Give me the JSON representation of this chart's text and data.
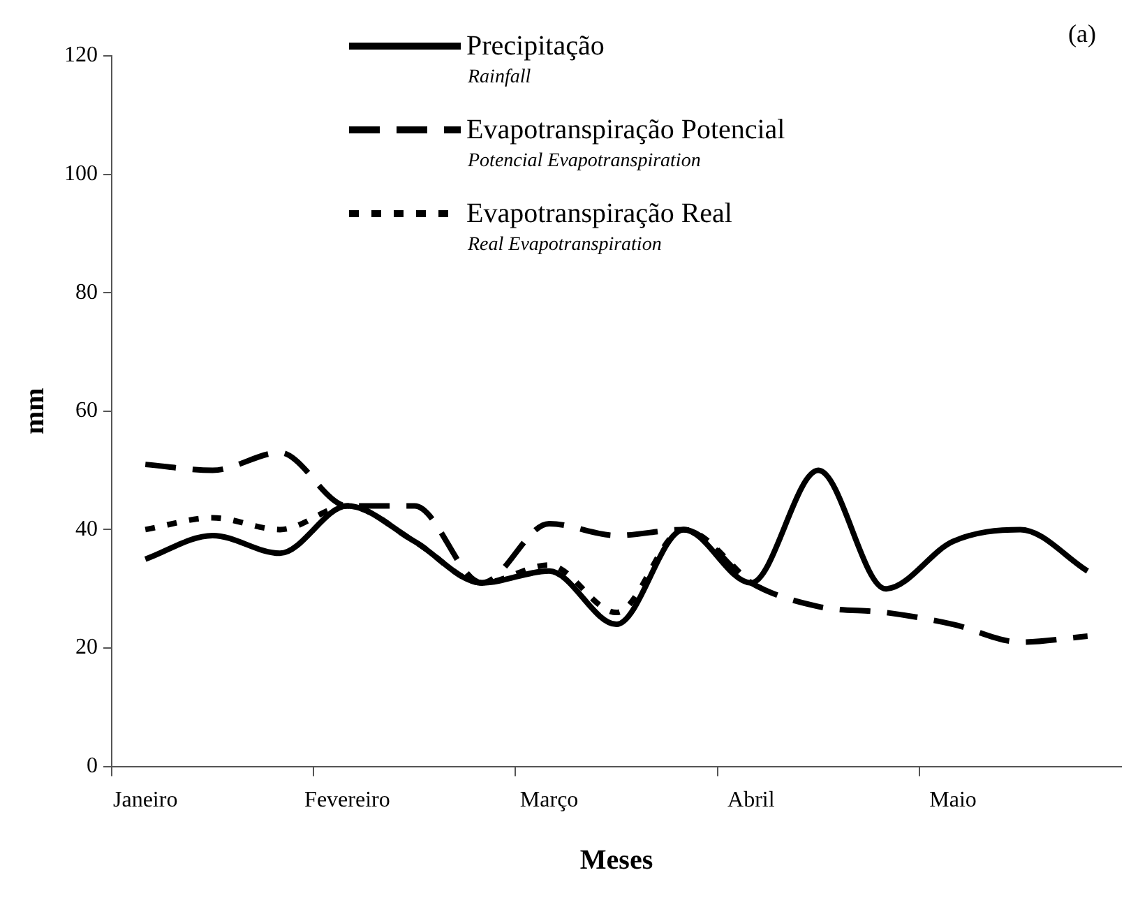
{
  "chart_data": {
    "type": "line",
    "xlabel": "Meses",
    "ylabel": "mm",
    "categories": [
      "Janeiro",
      null,
      null,
      "Fevereiro",
      null,
      null,
      "Março",
      null,
      null,
      "Abril",
      null,
      null,
      "Maio",
      null,
      null
    ],
    "series": [
      {
        "name": "Precipitação",
        "color": "#000000",
        "line_style": "solid",
        "values": [
          35,
          39,
          36,
          44,
          38,
          31,
          33,
          24,
          40,
          31,
          50,
          30,
          38,
          40,
          33
        ]
      },
      {
        "name": "Evapotranspiração Potencial",
        "color": "#000000",
        "line_style": "dashed",
        "values": [
          51,
          50,
          53,
          44,
          44,
          31,
          41,
          39,
          40,
          31,
          27,
          26,
          24,
          21,
          22
        ]
      },
      {
        "name": "Evapotranspiração Real",
        "color": "#000000",
        "line_style": "dotted",
        "values": [
          40,
          42,
          40,
          44,
          38,
          31,
          34,
          26,
          40,
          31,
          null,
          null,
          null,
          null,
          null
        ]
      }
    ],
    "annotations": [
      "Rainfall",
      "Potencial Evapotranspiration",
      "Real Evapotranspiration",
      "(a)"
    ],
    "ylim": [
      0,
      120
    ],
    "yticks": [
      0,
      20,
      40,
      60,
      80,
      100,
      120
    ],
    "grid": false,
    "legend": "top",
    "marker": "none"
  }
}
